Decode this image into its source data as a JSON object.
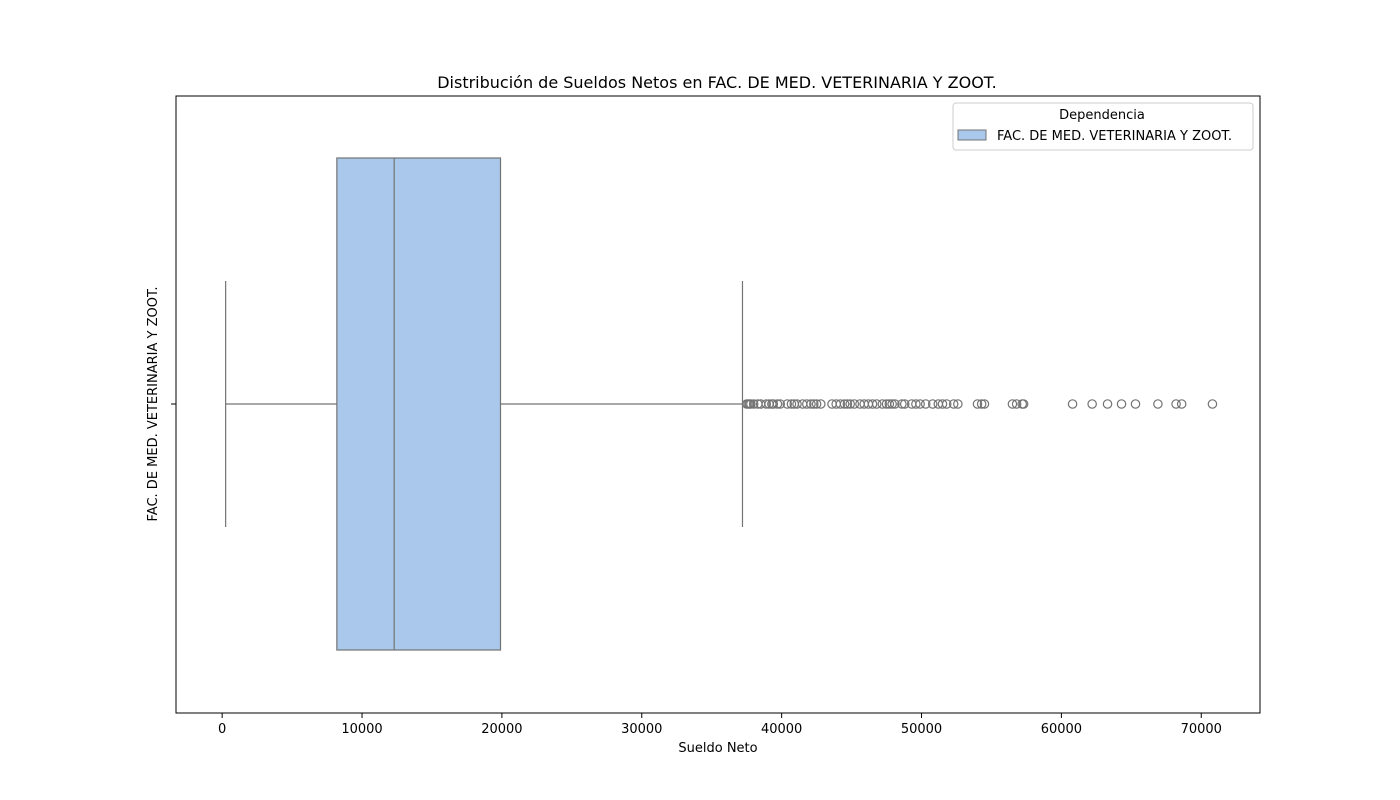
{
  "chart_data": {
    "type": "boxplot",
    "orientation": "horizontal",
    "title": "Distribución de Sueldos Netos en FAC. DE MED. VETERINARIA Y ZOOT.",
    "xlabel": "Sueldo Neto",
    "ylabel": "FAC. DE MED. VETERINARIA Y ZOOT.",
    "xlim": [
      -3300,
      74200
    ],
    "xticks": [
      0,
      10000,
      20000,
      30000,
      40000,
      50000,
      60000,
      70000
    ],
    "xtick_labels": [
      "0",
      "10000",
      "20000",
      "30000",
      "40000",
      "50000",
      "60000",
      "70000"
    ],
    "grid": false,
    "legend": {
      "title": "Dependencia",
      "placement": "top-right",
      "entries": [
        "FAC. DE MED. VETERINARIA Y ZOOT."
      ]
    },
    "colors": {
      "box_fill": "#a9c8ec",
      "line": "#737373"
    },
    "series": [
      {
        "name": "FAC. DE MED. VETERINARIA Y ZOOT.",
        "whisker_low": 250,
        "q1": 8200,
        "median": 12300,
        "q3": 19900,
        "whisker_high": 37200,
        "outliers": [
          37500,
          37600,
          37700,
          37800,
          38000,
          38300,
          38500,
          38900,
          39100,
          39300,
          39400,
          39700,
          39900,
          40400,
          40700,
          40900,
          41100,
          41500,
          41800,
          42100,
          42300,
          42500,
          42800,
          43600,
          43900,
          44200,
          44500,
          44700,
          44900,
          45200,
          45600,
          45900,
          46200,
          46500,
          46800,
          47200,
          47500,
          47700,
          47900,
          48100,
          48600,
          48800,
          49300,
          49600,
          49900,
          50300,
          50800,
          51200,
          51500,
          51800,
          52300,
          52600,
          54000,
          54300,
          54500,
          56500,
          56800,
          57200,
          57300,
          60800,
          62200,
          63300,
          64300,
          65300,
          66900,
          68200,
          68600,
          70800
        ]
      }
    ]
  }
}
